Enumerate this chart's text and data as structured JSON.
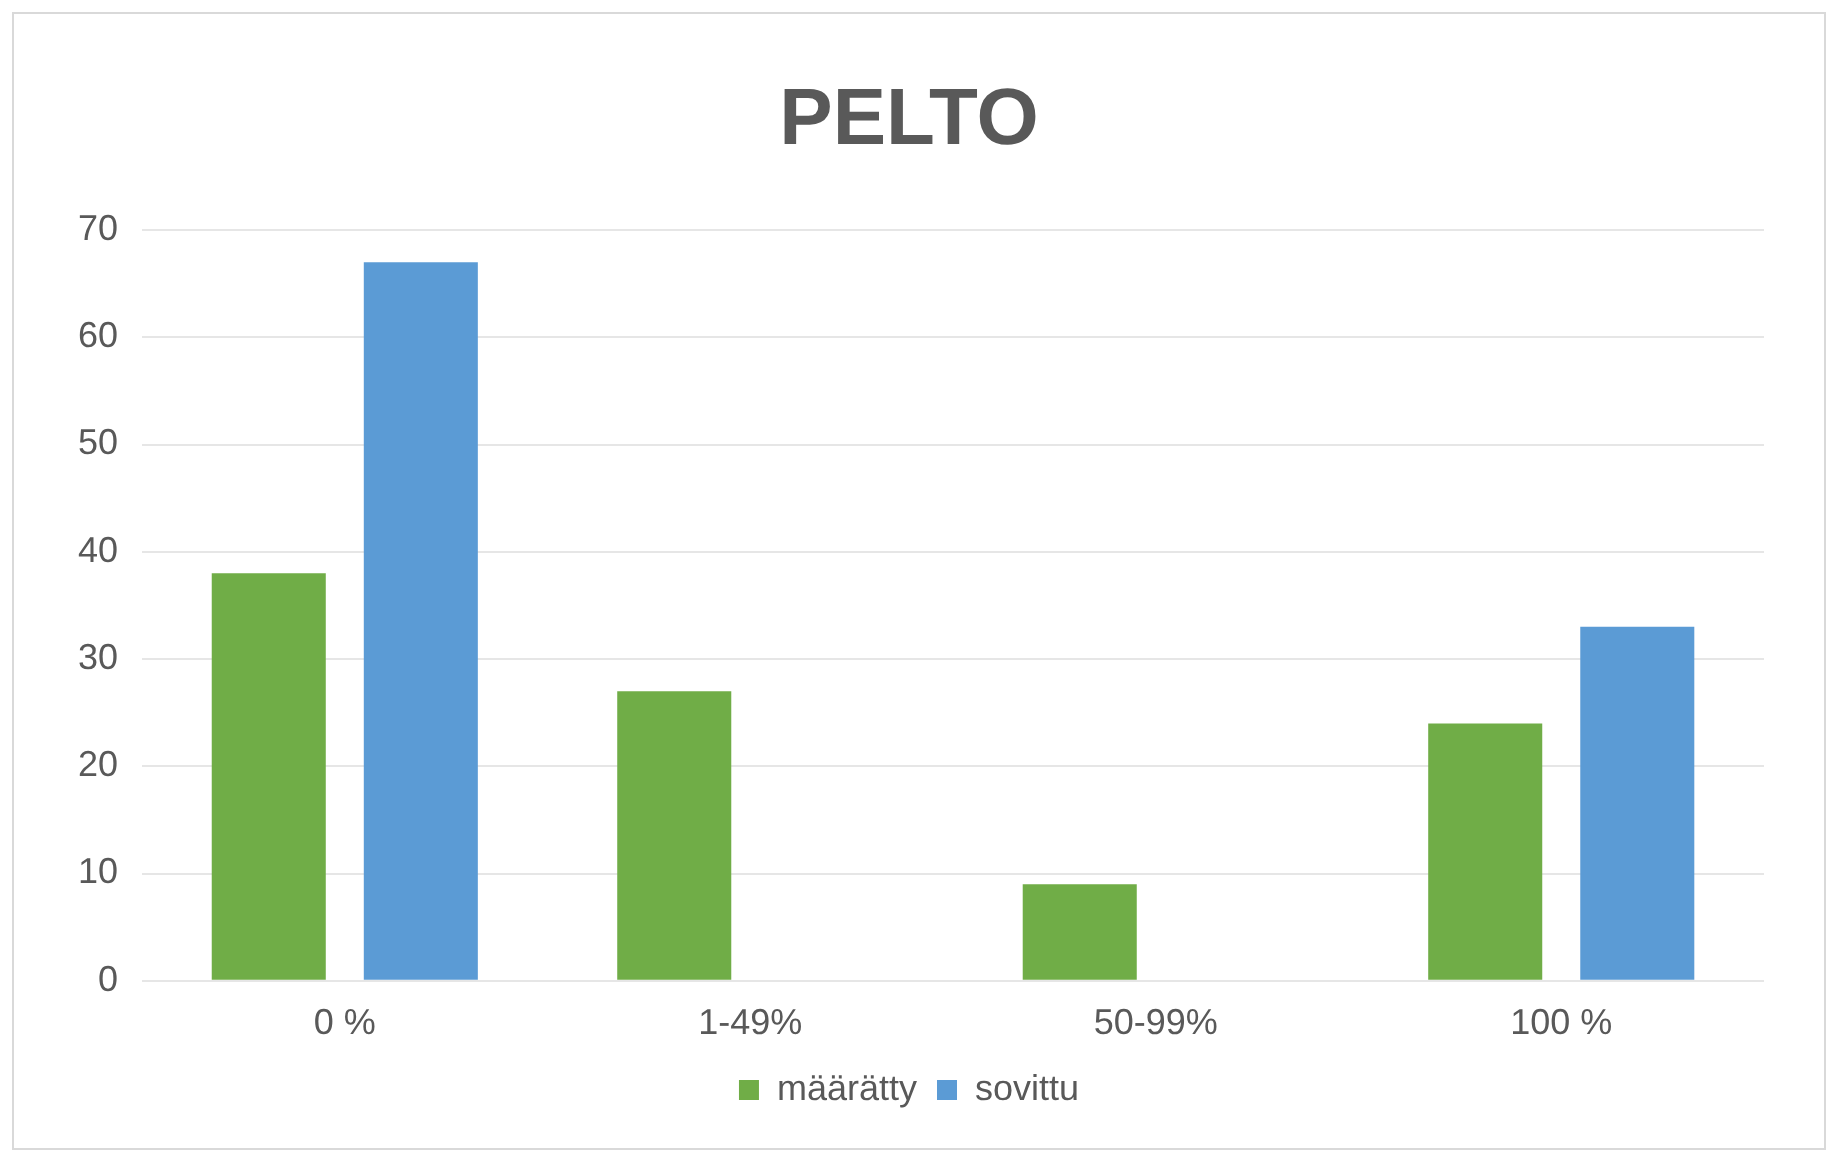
{
  "chart_data": {
    "type": "bar",
    "title": "PELTO",
    "categories": [
      "0 %",
      "1-49%",
      "50-99%",
      "100 %"
    ],
    "series": [
      {
        "name": "määrätty",
        "color": "#70ad47",
        "values": [
          38,
          27,
          9,
          24
        ]
      },
      {
        "name": "sovittu",
        "color": "#5b9bd5",
        "values": [
          67,
          0,
          0,
          33
        ]
      }
    ],
    "ylim": [
      0,
      70
    ],
    "yticks": [
      0,
      10,
      20,
      30,
      40,
      50,
      60,
      70
    ],
    "grid": "y",
    "legend": "bottom"
  }
}
